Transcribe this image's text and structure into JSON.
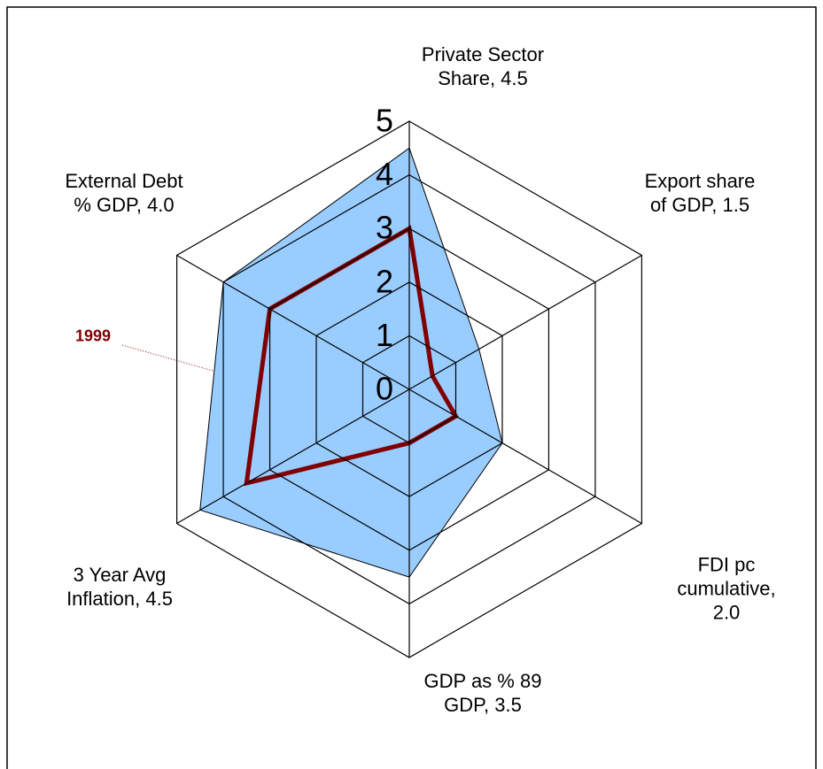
{
  "chart_data": {
    "type": "radar",
    "categories": [
      "Private Sector\nShare, 4.5",
      "Export share\nof GDP, 1.5",
      "FDI pc\ncumulative,\n2.0",
      "GDP as % 89\nGDP, 3.5",
      "3 Year Avg\nInflation, 4.5",
      "External Debt\n% GDP, 4.0"
    ],
    "series": [
      {
        "color": "#99ccff",
        "values": [
          4.5,
          1.5,
          2.0,
          3.5,
          4.5,
          4.0
        ]
      },
      {
        "name": "1999",
        "color": "#800000",
        "values": [
          3.0,
          0.5,
          1.0,
          1.0,
          3.5,
          3.0
        ]
      }
    ],
    "rlim": [
      0,
      5
    ],
    "rticks": [
      0,
      1,
      2,
      3,
      4,
      5
    ],
    "grid": true
  }
}
